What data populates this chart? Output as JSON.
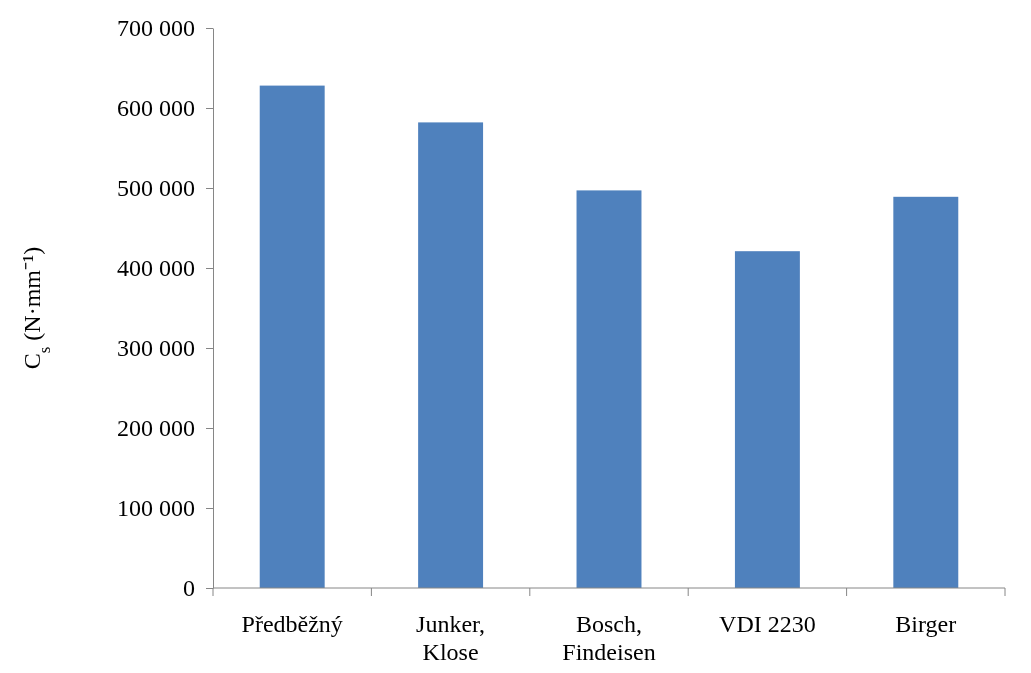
{
  "chart_data": {
    "type": "bar",
    "ylabel": "C$_{s}$ (N·mm⁻¹)",
    "categories": [
      "Předběžný",
      "Junker, Klose",
      "Bosch, Findeisen",
      "VDI 2230",
      "Birger"
    ],
    "values": [
      628000,
      582000,
      497000,
      421000,
      489000
    ],
    "color": "#4f81bd",
    "ylim": [
      0,
      700000
    ],
    "yticks": [
      {
        "value": 0,
        "label": "0"
      },
      {
        "value": 100000,
        "label": "100 000"
      },
      {
        "value": 200000,
        "label": "200 000"
      },
      {
        "value": 300000,
        "label": "300 000"
      },
      {
        "value": 400000,
        "label": "400 000"
      },
      {
        "value": 500000,
        "label": "500 000"
      },
      {
        "value": 600000,
        "label": "600 000"
      },
      {
        "value": 700000,
        "label": "700 000"
      }
    ],
    "grid": false
  }
}
